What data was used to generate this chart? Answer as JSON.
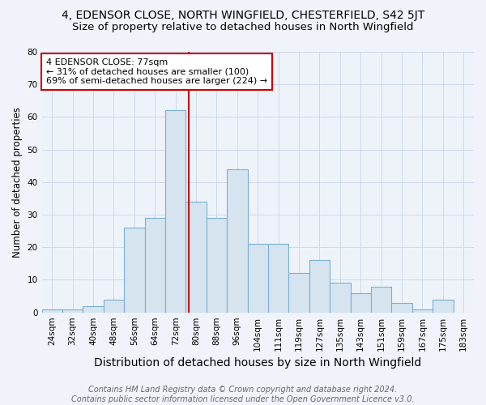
{
  "title": "4, EDENSOR CLOSE, NORTH WINGFIELD, CHESTERFIELD, S42 5JT",
  "subtitle": "Size of property relative to detached houses in North Wingfield",
  "xlabel": "Distribution of detached houses by size in North Wingfield",
  "ylabel": "Number of detached properties",
  "categories": [
    "24sqm",
    "32sqm",
    "40sqm",
    "48sqm",
    "56sqm",
    "64sqm",
    "72sqm",
    "80sqm",
    "88sqm",
    "96sqm",
    "104sqm",
    "111sqm",
    "119sqm",
    "127sqm",
    "135sqm",
    "143sqm",
    "151sqm",
    "159sqm",
    "167sqm",
    "175sqm",
    "183sqm"
  ],
  "values": [
    1,
    1,
    2,
    4,
    26,
    29,
    62,
    34,
    29,
    44,
    21,
    21,
    12,
    16,
    9,
    6,
    8,
    3,
    1,
    4,
    0
  ],
  "bar_color": "#d6e4f0",
  "bar_edge_color": "#7aafd4",
  "property_line_color": "#cc0000",
  "property_line_index": 6.625,
  "annotation_text": "4 EDENSOR CLOSE: 77sqm\n← 31% of detached houses are smaller (100)\n69% of semi-detached houses are larger (224) →",
  "annotation_box_color": "#ffffff",
  "annotation_box_edge_color": "#cc0000",
  "ylim": [
    0,
    80
  ],
  "yticks": [
    0,
    10,
    20,
    30,
    40,
    50,
    60,
    70,
    80
  ],
  "footer_text": "Contains HM Land Registry data © Crown copyright and database right 2024.\nContains public sector information licensed under the Open Government Licence v3.0.",
  "title_fontsize": 10,
  "subtitle_fontsize": 9.5,
  "xlabel_fontsize": 10,
  "ylabel_fontsize": 8.5,
  "tick_fontsize": 7.5,
  "annotation_fontsize": 8,
  "footer_fontsize": 7,
  "bg_color": "#f0f4fa",
  "plot_bg_color": "#eef3f9",
  "grid_color": "#c8d5e8"
}
